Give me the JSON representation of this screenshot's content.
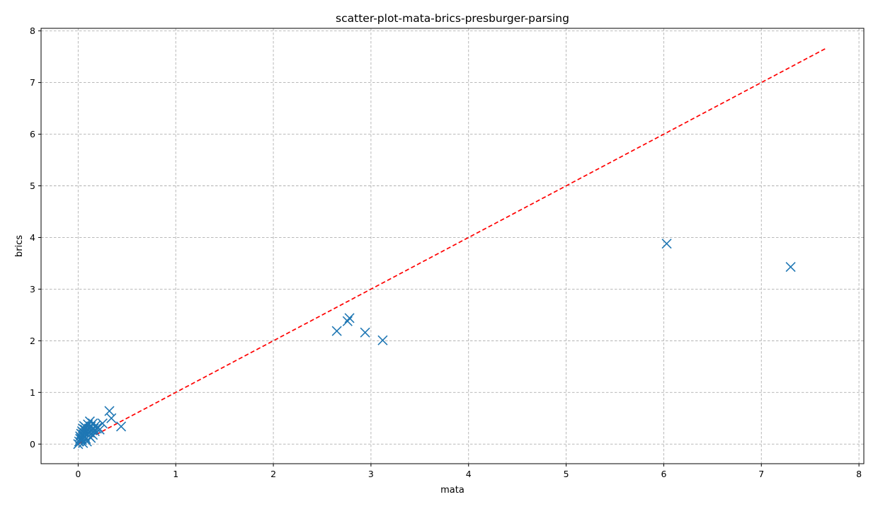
{
  "chart_data": {
    "type": "scatter",
    "title": "scatter-plot-mata-brics-presburger-parsing",
    "xlabel": "mata",
    "ylabel": "brics",
    "xlim": [
      -0.38,
      8.05
    ],
    "ylim": [
      -0.38,
      8.05
    ],
    "x_ticks": [
      0,
      1,
      2,
      3,
      4,
      5,
      6,
      7,
      8
    ],
    "y_ticks": [
      0,
      1,
      2,
      3,
      4,
      5,
      6,
      7,
      8
    ],
    "grid": true,
    "marker": "x",
    "point_color": "#1f77b4",
    "reference_line": {
      "style": "dashed",
      "color": "#ff0000",
      "from": [
        0,
        0
      ],
      "to": [
        7.67,
        7.67
      ]
    },
    "series": [
      {
        "points": [
          [
            0.0,
            0.0
          ],
          [
            0.01,
            0.05
          ],
          [
            0.02,
            0.1
          ],
          [
            0.02,
            0.15
          ],
          [
            0.03,
            0.2
          ],
          [
            0.03,
            0.12
          ],
          [
            0.04,
            0.25
          ],
          [
            0.04,
            0.08
          ],
          [
            0.05,
            0.3
          ],
          [
            0.05,
            0.18
          ],
          [
            0.05,
            0.02
          ],
          [
            0.06,
            0.22
          ],
          [
            0.06,
            0.35
          ],
          [
            0.07,
            0.14
          ],
          [
            0.07,
            0.28
          ],
          [
            0.08,
            0.1
          ],
          [
            0.08,
            0.32
          ],
          [
            0.09,
            0.2
          ],
          [
            0.09,
            0.05
          ],
          [
            0.1,
            0.26
          ],
          [
            0.1,
            0.38
          ],
          [
            0.11,
            0.16
          ],
          [
            0.11,
            0.3
          ],
          [
            0.12,
            0.22
          ],
          [
            0.12,
            0.44
          ],
          [
            0.13,
            0.12
          ],
          [
            0.13,
            0.34
          ],
          [
            0.14,
            0.27
          ],
          [
            0.15,
            0.4
          ],
          [
            0.15,
            0.18
          ],
          [
            0.16,
            0.3
          ],
          [
            0.17,
            0.25
          ],
          [
            0.18,
            0.36
          ],
          [
            0.19,
            0.3
          ],
          [
            0.2,
            0.33
          ],
          [
            0.22,
            0.28
          ],
          [
            0.25,
            0.4
          ],
          [
            0.32,
            0.64
          ],
          [
            0.34,
            0.5
          ],
          [
            0.44,
            0.34
          ],
          [
            2.65,
            2.19
          ],
          [
            2.76,
            2.38
          ],
          [
            2.78,
            2.44
          ],
          [
            2.94,
            2.16
          ],
          [
            3.12,
            2.01
          ],
          [
            6.03,
            3.88
          ],
          [
            7.3,
            3.43
          ]
        ]
      }
    ]
  }
}
